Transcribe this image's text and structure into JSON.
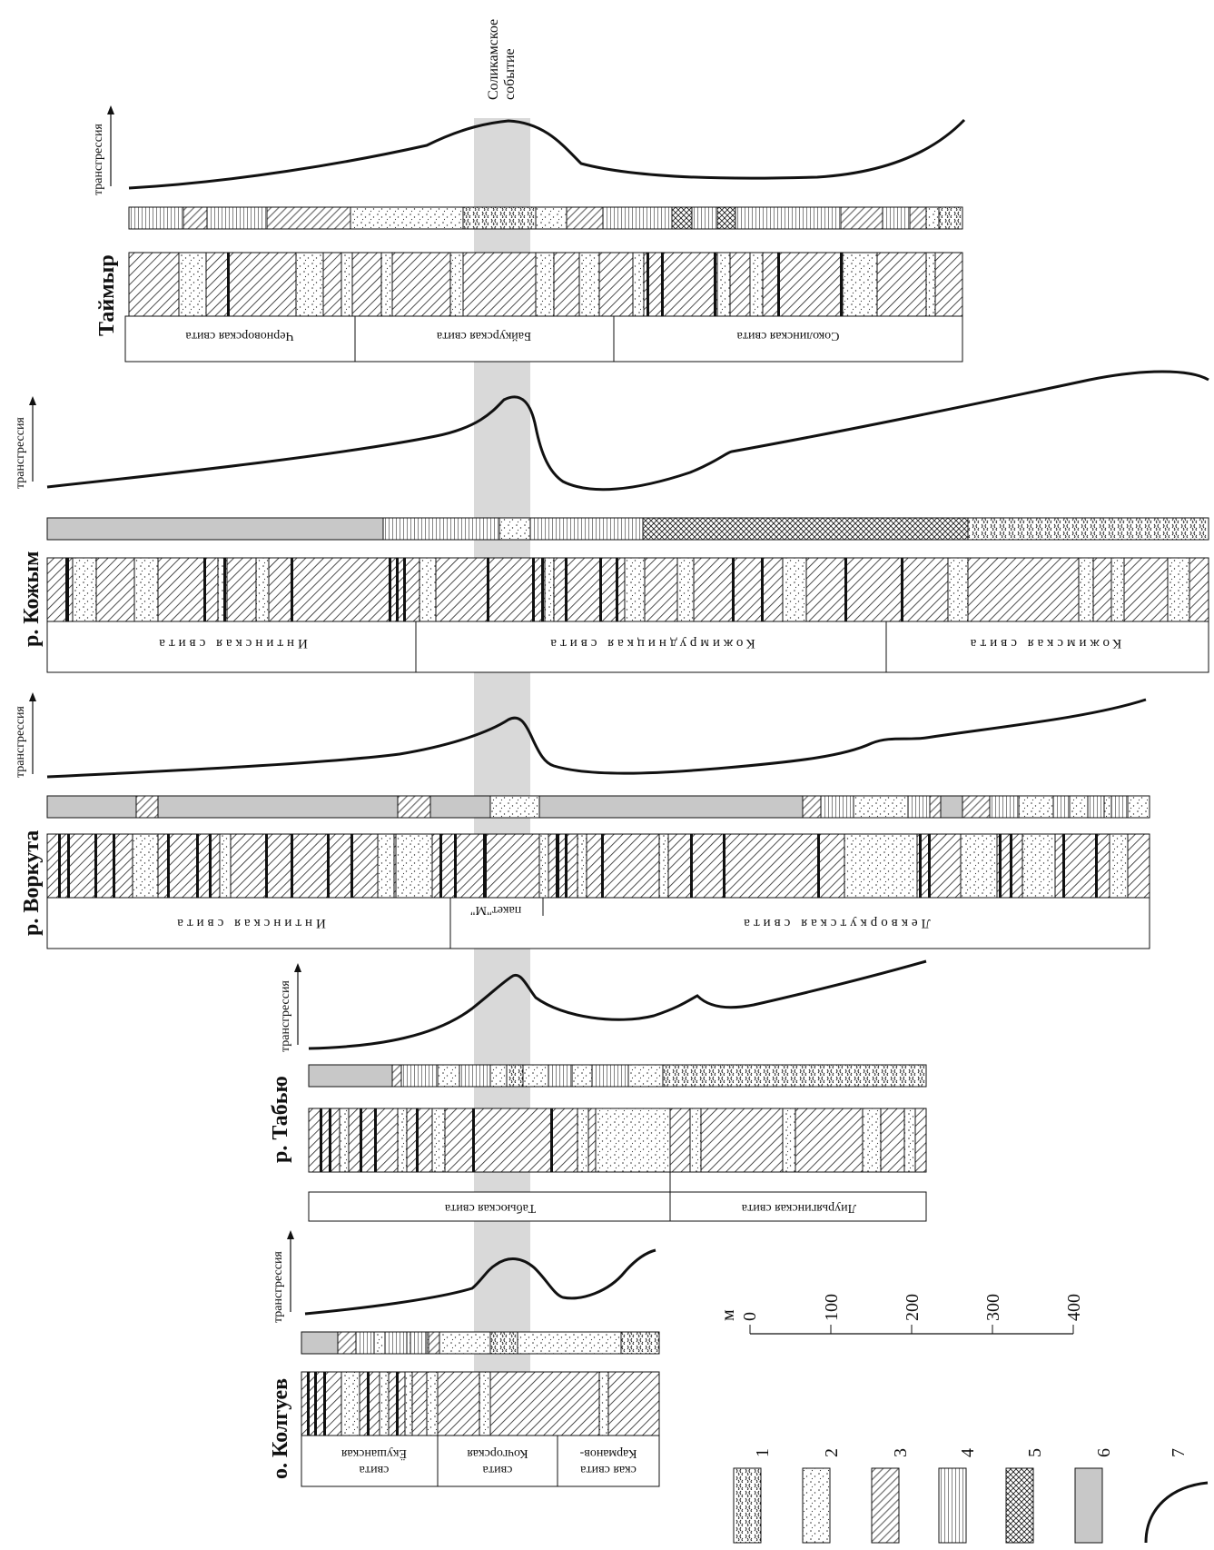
{
  "event_label": [
    "Соликамское",
    "событие"
  ],
  "curve_label": "трансгрессия",
  "legend": {
    "items": [
      "1",
      "2",
      "3",
      "4",
      "5",
      "6",
      "7"
    ]
  },
  "scale": {
    "unit": "м",
    "ticks": [
      "0",
      "100",
      "200",
      "300",
      "400"
    ]
  },
  "sections": [
    {
      "id": "taimyr",
      "title": "Таймыр",
      "formations": [
        "Черноворская свита",
        "Байкурская свита",
        "Соколинская свита"
      ]
    },
    {
      "id": "kozhym",
      "title": "р. Кожым",
      "formations": [
        "Интинская свита",
        "Кожимрудницкая свита",
        "Кожимская свита"
      ]
    },
    {
      "id": "vorkuta",
      "title": "р. Воркута",
      "formations": [
        "Интинская свита",
        "Лекворкутская свита"
      ],
      "marker": "пакет\"М\""
    },
    {
      "id": "tabyu",
      "title": "р. Табью",
      "formations": [
        "Табьюская свита",
        "Лиурьягинская свита"
      ]
    },
    {
      "id": "kolguev",
      "title": "о. Колгуев",
      "formations": [
        [
          "Ёкушанская",
          "свита"
        ],
        [
          "Кочгорская",
          "свита"
        ],
        [
          "Карманов-",
          "ская свита"
        ]
      ]
    }
  ]
}
